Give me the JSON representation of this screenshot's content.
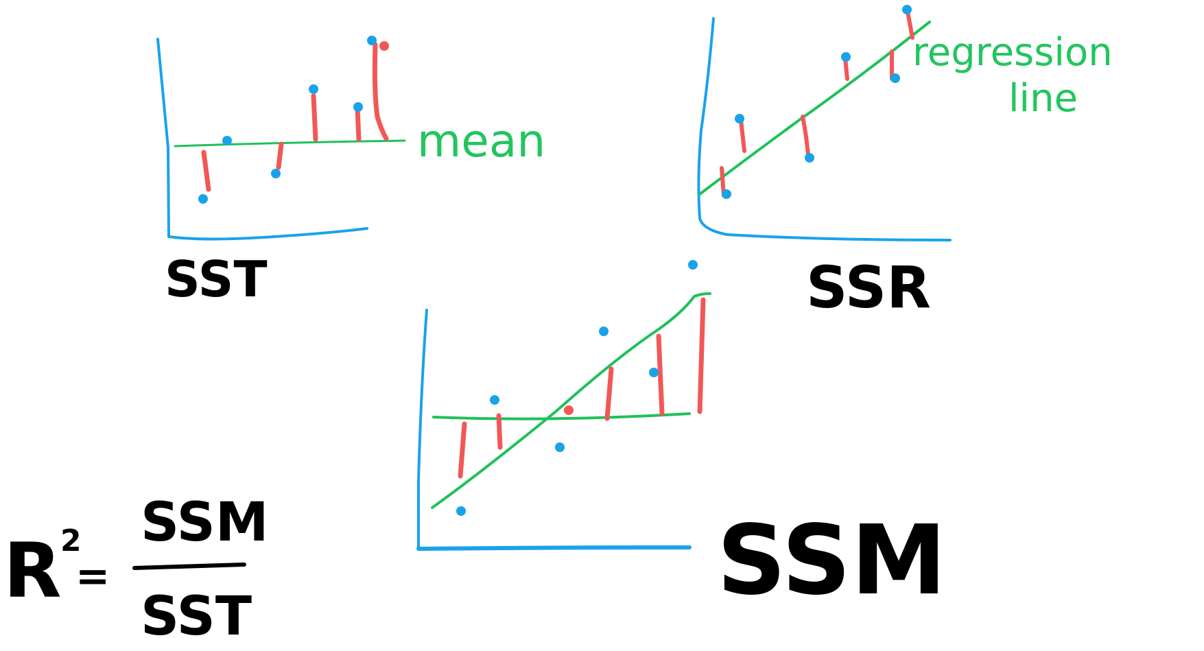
{
  "colors": {
    "axis": "#1aa3ea",
    "line": "#1fc15a",
    "residual": "#f25757",
    "point": "#19a2ea",
    "ink": "#000000",
    "background": "#ffffff"
  },
  "labels": {
    "sst": "SST",
    "ssr": "SSR",
    "ssm": "SSM",
    "mean": "mean",
    "regression_line_1": "regression",
    "regression_line_2": "line"
  },
  "formula": {
    "lhs": "R",
    "exponent": "2",
    "equals": "=",
    "numerator": "SSM",
    "denominator": "SST"
  }
}
